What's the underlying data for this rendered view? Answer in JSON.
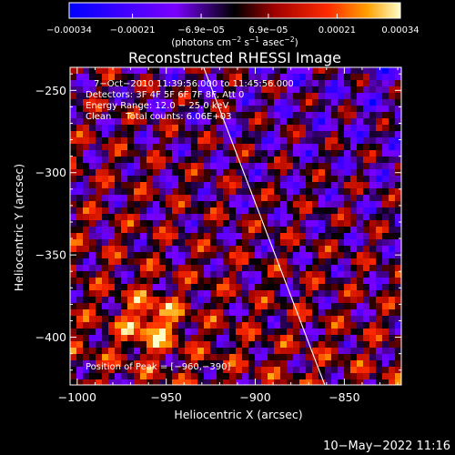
{
  "chart_data": {
    "type": "heatmap",
    "title": "Reconstructed RHESSI Image",
    "xlabel": "Heliocentric X (arcsec)",
    "ylabel": "Heliocentric Y (arcsec)",
    "xlim": [
      -1004,
      -818
    ],
    "ylim": [
      -429,
      -236
    ],
    "x_ticks": [
      -1000,
      -950,
      -900,
      -850
    ],
    "x_tick_labels": [
      "−1000",
      "−950",
      "−900",
      "−850"
    ],
    "y_ticks": [
      -250,
      -300,
      -350,
      -400
    ],
    "y_tick_labels": [
      "−250",
      "−300",
      "−350",
      "−400"
    ],
    "colorbar": {
      "min": -0.00034,
      "max": 0.00034,
      "ticks": [
        -0.00034,
        -0.00021,
        -6.9e-05,
        6.9e-05,
        0.00021,
        0.00034
      ],
      "tick_labels": [
        "−0.00034",
        "−0.00021",
        "−6.9e−05",
        "6.9e−05",
        "0.00021",
        "0.00034"
      ],
      "unit_main": "(photons cm",
      "unit_exp1": "−2",
      "unit_mid": " s",
      "unit_exp2": "−1",
      "unit_tail": " asec",
      "unit_exp3": "−2",
      "unit_close": ")"
    },
    "annotations": {
      "time_range": "7−Oct−2010 11:39:56.000 to 11:45:56.000",
      "detectors": "Detectors: 3F 4F 5F 6F 7F 8F, Att 0",
      "energy_range": "Energy Range: 12.0 − 25.0 keV",
      "clean_counts": "Clean     Total counts: 6.06E+03",
      "peak_position": "Position of Peak = [−960,−390]"
    },
    "limb_line": {
      "x": [
        -929,
        -861
      ],
      "y": [
        -236,
        -429
      ]
    },
    "peak": {
      "x": -960,
      "y": -390
    },
    "colors": {
      "background": "#000000",
      "foreground": "#ffffff"
    }
  },
  "footer": {
    "date_stamp": "10−May−2022 11:16"
  }
}
